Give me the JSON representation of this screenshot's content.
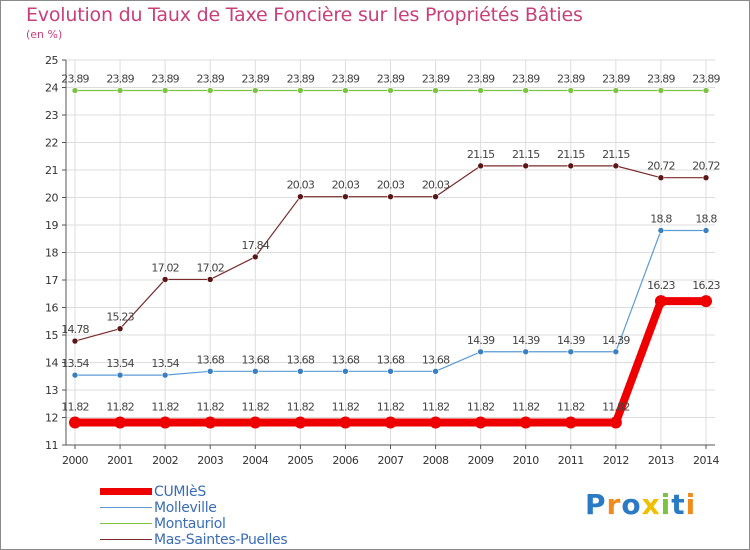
{
  "chart_data": {
    "type": "line",
    "title": "Evolution du Taux de Taxe Foncière sur les Propriétés Bâties",
    "unit_label": "(en %)",
    "xlabel": "",
    "ylabel": "",
    "ylim": [
      11,
      25
    ],
    "yticks": [
      11,
      12,
      13,
      14,
      15,
      16,
      17,
      18,
      19,
      20,
      21,
      22,
      23,
      24,
      25
    ],
    "categories": [
      "2000",
      "2001",
      "2002",
      "2003",
      "2004",
      "2005",
      "2006",
      "2007",
      "2008",
      "2009",
      "2010",
      "2011",
      "2012",
      "2013",
      "2014"
    ],
    "grid": true,
    "legend_position": "bottom-left",
    "series": [
      {
        "name": "Montauriol",
        "color": "#7dc242",
        "marker": "#7dc242",
        "values": [
          23.89,
          23.89,
          23.89,
          23.89,
          23.89,
          23.89,
          23.89,
          23.89,
          23.89,
          23.89,
          23.89,
          23.89,
          23.89,
          23.89,
          23.89
        ],
        "labels": [
          "23.89",
          "23.89",
          "23.89",
          "23.89",
          "23.89",
          "23.89",
          "23.89",
          "23.89",
          "23.89",
          "23.89",
          "23.89",
          "23.89",
          "23.89",
          "23.89",
          "23.89"
        ]
      },
      {
        "name": "Mas-Saintes-Puelles",
        "color": "#7a2a2a",
        "marker": "#5a1616",
        "values": [
          14.78,
          15.23,
          17.02,
          17.02,
          17.84,
          20.03,
          20.03,
          20.03,
          20.03,
          21.15,
          21.15,
          21.15,
          21.15,
          20.72,
          20.72
        ],
        "labels": [
          "14.78",
          "15.23",
          "17.02",
          "17.02",
          "17.84",
          "20.03",
          "20.03",
          "20.03",
          "20.03",
          "21.15",
          "21.15",
          "21.15",
          "21.15",
          "20.72",
          "20.72"
        ]
      },
      {
        "name": "Molleville",
        "color": "#5b9bd5",
        "marker": "#3a7fc0",
        "values": [
          13.54,
          13.54,
          13.54,
          13.68,
          13.68,
          13.68,
          13.68,
          13.68,
          13.68,
          14.39,
          14.39,
          14.39,
          14.39,
          18.8,
          18.8
        ],
        "labels": [
          "13.54",
          "13.54",
          "13.54",
          "13.68",
          "13.68",
          "13.68",
          "13.68",
          "13.68",
          "13.68",
          "14.39",
          "14.39",
          "14.39",
          "14.39",
          "18.8",
          "18.8"
        ]
      },
      {
        "name": "CUMIèS",
        "color": "#ee0000",
        "marker": "#ee0000",
        "values": [
          11.82,
          11.82,
          11.82,
          11.82,
          11.82,
          11.82,
          11.82,
          11.82,
          11.82,
          11.82,
          11.82,
          11.82,
          11.82,
          16.23,
          16.23
        ],
        "labels": [
          "11.82",
          "11.82",
          "11.82",
          "11.82",
          "11.82",
          "11.82",
          "11.82",
          "11.82",
          "11.82",
          "11.82",
          "11.82",
          "11.82",
          "11.82",
          "16.23",
          "16.23"
        ]
      }
    ],
    "legend": [
      {
        "name": "CUMIèS",
        "color": "#ee0000"
      },
      {
        "name": "Molleville",
        "color": "#5b9bd5"
      },
      {
        "name": "Montauriol",
        "color": "#7dc242"
      },
      {
        "name": "Mas-Saintes-Puelles",
        "color": "#7a2a2a"
      }
    ]
  },
  "logo": {
    "letters": [
      "P",
      "r",
      "o",
      "x",
      "i",
      "t",
      "i"
    ],
    "colors": [
      "#2b7bc4",
      "#f08c1e",
      "#2b7bc4",
      "#f0c000",
      "#7dc242",
      "#2b7bc4",
      "#f08c1e"
    ]
  }
}
